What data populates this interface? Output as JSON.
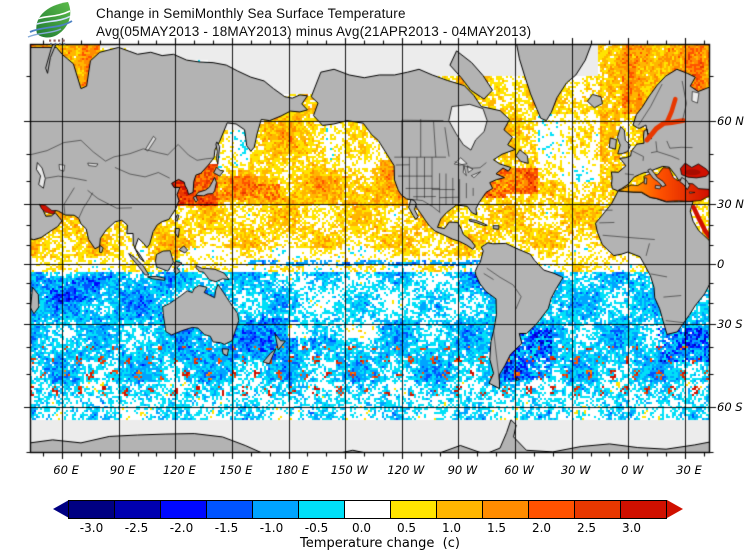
{
  "header": {
    "title_line1": "Change in SemiMonthly Sea Surface Temperature",
    "title_line2": "Avg(05MAY2013 - 18MAY2013) minus Avg(21APR2013 - 04MAY2013)",
    "logo_name": "meteorological-agency-logo"
  },
  "map": {
    "lat_tick_labels": [
      "60 N",
      "30 N",
      "0",
      "30 S",
      "60 S"
    ],
    "lat_tick_values": [
      60,
      30,
      0,
      -30,
      -60
    ],
    "lon_tick_labels": [
      "60 E",
      "90 E",
      "120 E",
      "150 E",
      "180 E",
      "150 W",
      "120 W",
      "90 W",
      "60 W",
      "30 W",
      "0 W",
      "30 E"
    ],
    "lon_tick_values": [
      60,
      90,
      120,
      150,
      180,
      210,
      240,
      270,
      300,
      330,
      360,
      390
    ],
    "land_color": "#b3b3b3",
    "no_data_color": "#ececec",
    "grid_color": "#000000"
  },
  "colorbar": {
    "tick_labels": [
      "-3.0",
      "-2.5",
      "-2.0",
      "-1.5",
      "-1.0",
      "-0.5",
      "0.0",
      "0.5",
      "1.0",
      "1.5",
      "2.0",
      "2.5",
      "3.0"
    ],
    "segment_colors": [
      "#000082",
      "#0000b0",
      "#0008ff",
      "#0054ff",
      "#00a4ff",
      "#00e0f8",
      "#ffffff",
      "#ffe400",
      "#ffb600",
      "#ff8c00",
      "#ff5200",
      "#e83800",
      "#d01000"
    ],
    "arrow_left_color": "#000082",
    "arrow_right_color": "#d01000",
    "caption": "Temperature change  (c)"
  },
  "chart_data": {
    "type": "heatmap",
    "title": "Change in SemiMonthly Sea Surface Temperature",
    "subtitle": "Avg(05MAY2013 - 18MAY2013) minus Avg(21APR2013 - 04MAY2013)",
    "variable": "semi-monthly sea surface temperature change",
    "units": "C",
    "scale_levels": [
      -3.0,
      -2.5,
      -2.0,
      -1.5,
      -1.0,
      -0.5,
      0.0,
      0.5,
      1.0,
      1.5,
      2.0,
      2.5,
      3.0
    ],
    "projection": "mercator, global, approx 75N to 70S, left edge near 43E",
    "lat_ticks_deg": [
      60,
      30,
      0,
      -30,
      -60
    ],
    "lon_ticks_deg": [
      60,
      90,
      120,
      150,
      180,
      -150,
      -120,
      -90,
      -60,
      -30,
      0,
      30
    ],
    "legend_position": "bottom",
    "notable_patterns": [
      {
        "region": "Sea of Japan / Yellow Sea",
        "change_c": "+2 to +3"
      },
      {
        "region": "Kuroshio extension, NW Pacific",
        "change_c": "+1.5 to +2.5"
      },
      {
        "region": "Gulf Stream off NE United States",
        "change_c": "+2 to +3"
      },
      {
        "region": "Mediterranean, Baltic and Black Seas",
        "change_c": "+1.5 to +3"
      },
      {
        "region": "Barents / Norwegian Seas",
        "change_c": "+1 to +2.5"
      },
      {
        "region": "North Pacific and North Atlantic subtropics (10N-45N)",
        "change_c": "+0.5 to +1.5"
      },
      {
        "region": "US west coast",
        "change_c": "+1 to +2"
      },
      {
        "region": "Equatorial band",
        "change_c": "-0.5 to +0.5 (mostly white)"
      },
      {
        "region": "Southern Hemisphere oceans 5S-55S",
        "change_c": "-0.5 to -1.5 (cooling)"
      },
      {
        "region": "Brazil-Malvinas and Agulhas confluences",
        "change_c": "-2 to -3 patches mixed with +1 eddies"
      },
      {
        "region": "Polar sea-ice zones and high-latitude seas",
        "change_c": "no data (light gray)"
      }
    ]
  }
}
